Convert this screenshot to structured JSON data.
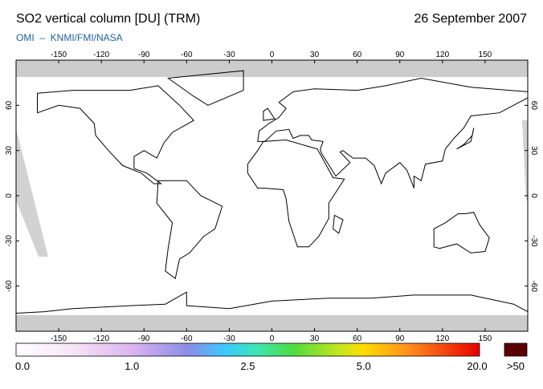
{
  "header": {
    "title": "SO2 vertical column [DU] (TRM)",
    "date": "26 September 2007",
    "source": "OMI  –  KNMI/FMI/NASA"
  },
  "map": {
    "lon_ticks": [
      -150,
      -120,
      -90,
      -60,
      -30,
      0,
      30,
      60,
      90,
      120,
      150
    ],
    "lat_ticks": [
      60,
      30,
      0,
      -30,
      -60
    ]
  },
  "colorbar": {
    "labels": [
      "0.0",
      "1.0",
      "2.5",
      "5.0",
      "20.0"
    ],
    "overflow_label": ">50"
  }
}
